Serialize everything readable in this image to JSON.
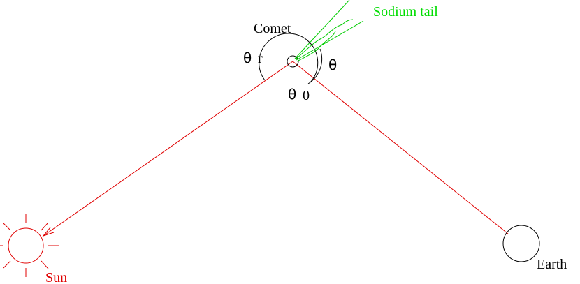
{
  "labels": {
    "comet": "Comet",
    "tail": "Sodium tail",
    "theta_r": {
      "symbol": "θ",
      "subscript": "r"
    },
    "theta": "θ",
    "theta_0": {
      "symbol": "θ",
      "subscript": "0"
    },
    "sun": "Sun",
    "earth": "Earth"
  }
}
